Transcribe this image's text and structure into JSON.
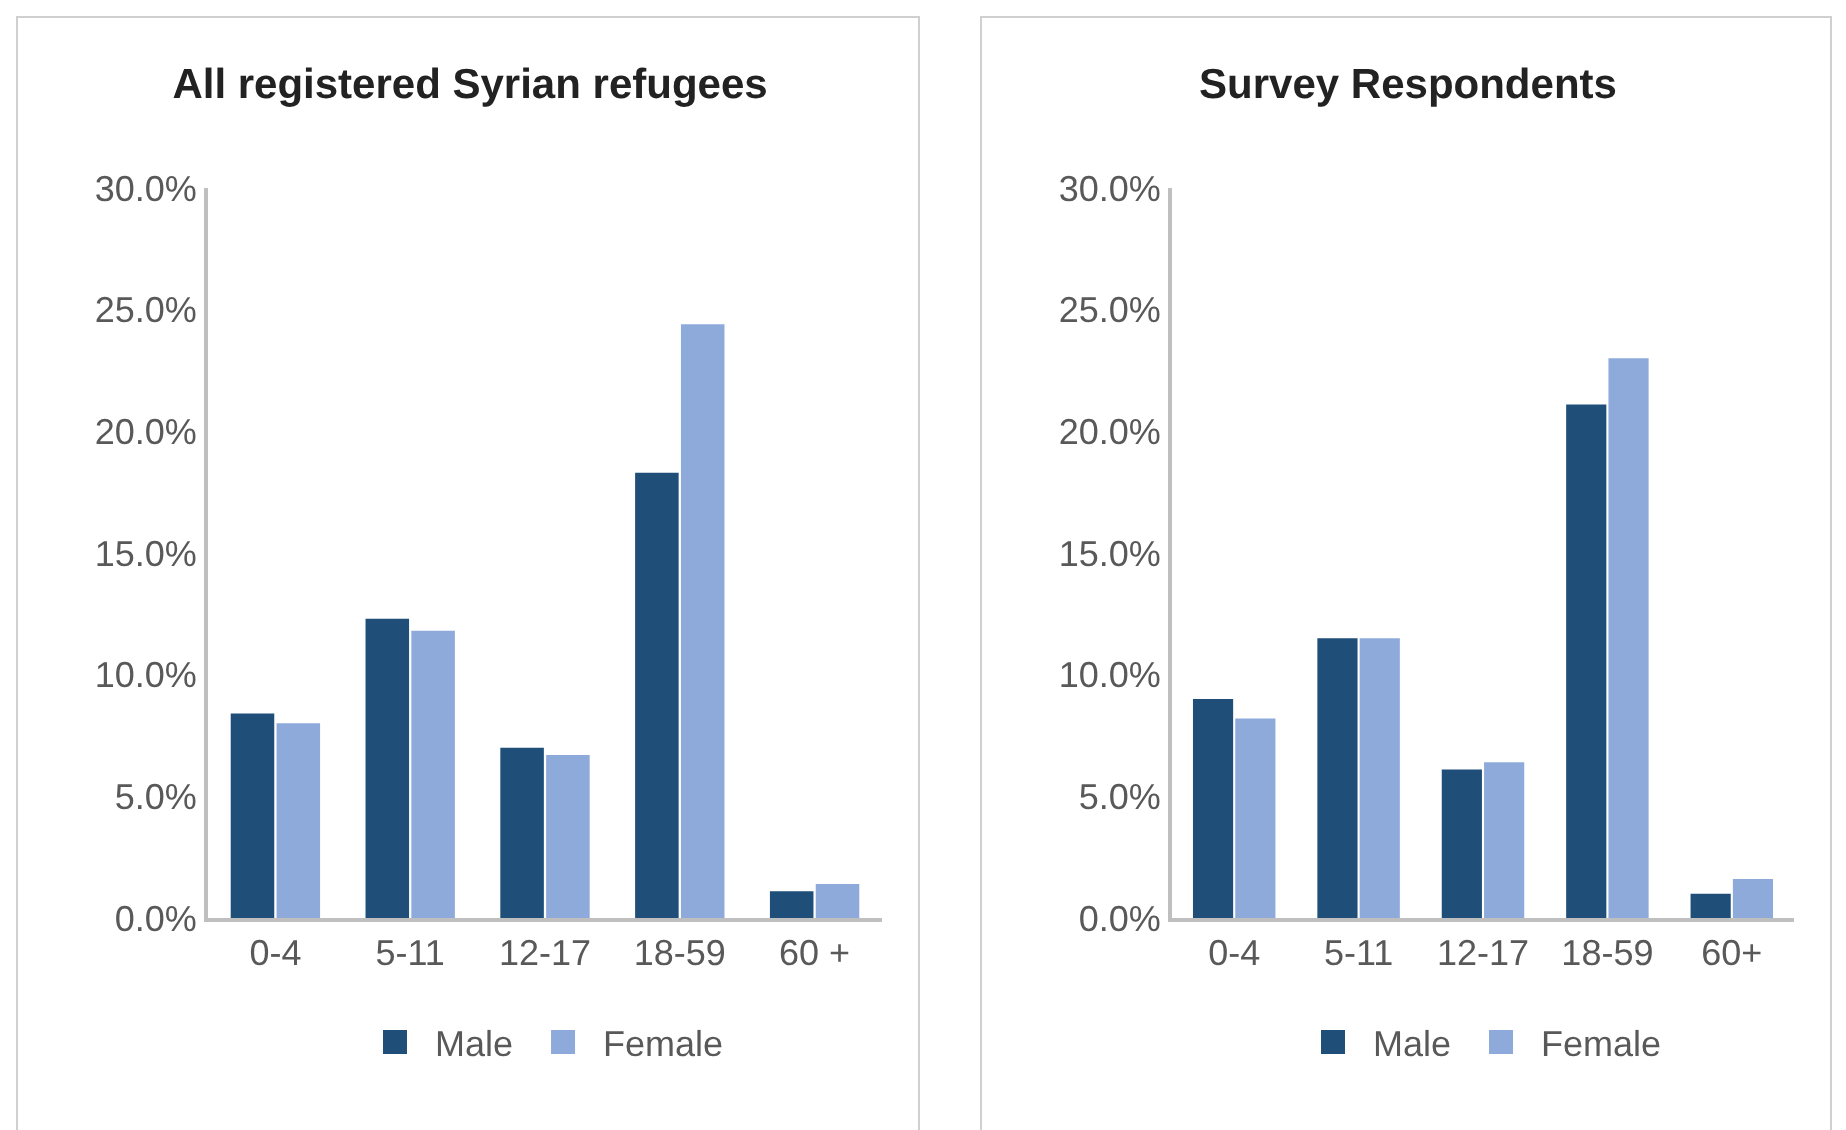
{
  "chart_data": [
    {
      "type": "bar",
      "title": "All registered Syrian refugees",
      "categories": [
        "0-4",
        "5-11",
        "12-17",
        "18-59",
        "60 +"
      ],
      "series": [
        {
          "name": "Male",
          "color": "#1f4e79",
          "values": [
            8.4,
            12.3,
            7.0,
            18.3,
            1.1
          ]
        },
        {
          "name": "Female",
          "color": "#8eaadb",
          "values": [
            8.0,
            11.8,
            6.7,
            24.4,
            1.4
          ]
        }
      ],
      "ylim": [
        0,
        30
      ],
      "yticks": [
        {
          "value": 0,
          "label": "0.0%"
        },
        {
          "value": 5,
          "label": "5.0%"
        },
        {
          "value": 10,
          "label": "10.0%"
        },
        {
          "value": 15,
          "label": "15.0%"
        },
        {
          "value": 20,
          "label": "20.0%"
        },
        {
          "value": 25,
          "label": "25.0%"
        },
        {
          "value": 30,
          "label": "30.0%"
        }
      ],
      "grid": false,
      "legend": "bottom"
    },
    {
      "type": "bar",
      "title": "Survey Respondents",
      "categories": [
        "0-4",
        "5-11",
        "12-17",
        "18-59",
        "60+"
      ],
      "series": [
        {
          "name": "Male",
          "color": "#1f4e79",
          "values": [
            9.0,
            11.5,
            6.1,
            21.1,
            1.0
          ]
        },
        {
          "name": "Female",
          "color": "#8eaadb",
          "values": [
            8.2,
            11.5,
            6.4,
            23.0,
            1.6
          ]
        }
      ],
      "ylim": [
        0,
        30
      ],
      "yticks": [
        {
          "value": 0,
          "label": "0.0%"
        },
        {
          "value": 5,
          "label": "5.0%"
        },
        {
          "value": 10,
          "label": "10.0%"
        },
        {
          "value": 15,
          "label": "15.0%"
        },
        {
          "value": 20,
          "label": "20.0%"
        },
        {
          "value": 25,
          "label": "25.0%"
        },
        {
          "value": 30,
          "label": "30.0%"
        }
      ],
      "grid": false,
      "legend": "bottom"
    }
  ]
}
